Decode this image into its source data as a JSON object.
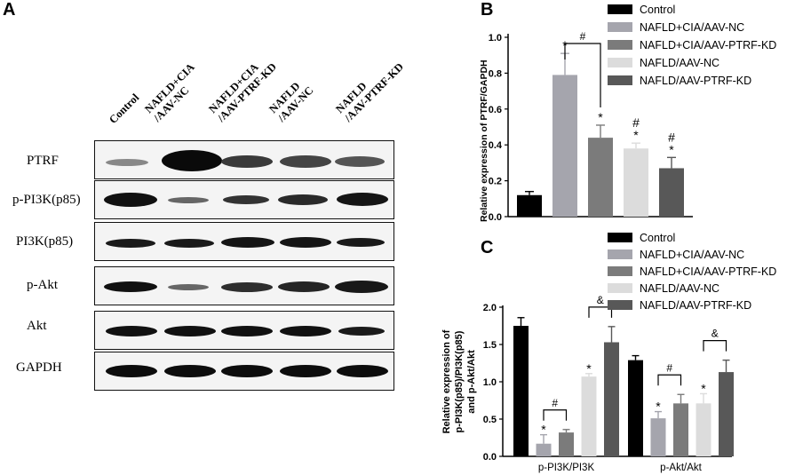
{
  "panels": {
    "a": "A",
    "b": "B",
    "c": "C"
  },
  "western_blot": {
    "lanes": [
      {
        "line1": "Control",
        "line2": ""
      },
      {
        "line1": "NAFLD+CIA",
        "line2": "/AAV-NC"
      },
      {
        "line1": "NAFLD+CIA",
        "line2": "/AAV-PTRF-KD"
      },
      {
        "line1": "NAFLD",
        "line2": "/AAV-NC"
      },
      {
        "line1": "NAFLD",
        "line2": "/AAV-PTRF-KD"
      }
    ],
    "rows": [
      "PTRF",
      "p-PI3K(p85)",
      "PI3K(p85)",
      "p-Akt",
      "Akt",
      "GAPDH"
    ]
  },
  "chart_data": [
    {
      "type": "bar",
      "ylabel": "Relative expression of PTRF/GAPDH",
      "ylim": [
        0,
        1.0
      ],
      "yticks": [
        "0.0",
        "0.2",
        "0.4",
        "0.6",
        "0.8",
        "1.0"
      ],
      "legend": [
        "Control",
        "NAFLD+CIA/AAV-NC",
        "NAFLD+CIA/AAV-PTRF-KD",
        "NAFLD/AAV-NC",
        "NAFLD/AAV-PTRF-KD"
      ],
      "colors": [
        "#000000",
        "#a5a5ad",
        "#7b7b7b",
        "#dcdcdc",
        "#585858"
      ],
      "values": [
        0.12,
        0.79,
        0.44,
        0.38,
        0.27
      ],
      "errors": [
        0.02,
        0.12,
        0.07,
        0.03,
        0.06
      ],
      "annotations": [
        "",
        "*",
        "*",
        "#\n*",
        "#\n*"
      ],
      "bracket_symbol": "#"
    },
    {
      "type": "bar",
      "ylabel_lines": [
        "Relative expression of",
        "p-PI3K(p85)/PI3K(p85)",
        "and p-Akt/Akt"
      ],
      "ylim": [
        0,
        2.0
      ],
      "yticks": [
        "0.0",
        "0.5",
        "1.0",
        "1.5",
        "2.0"
      ],
      "categories": [
        "p-PI3K/PI3K",
        "p-Akt/Akt"
      ],
      "legend": [
        "Control",
        "NAFLD+CIA/AAV-NC",
        "NAFLD+CIA/AAV-PTRF-KD",
        "NAFLD/AAV-NC",
        "NAFLD/AAV-PTRF-KD"
      ],
      "colors": [
        "#000000",
        "#a5a5ad",
        "#7b7b7b",
        "#dcdcdc",
        "#585858"
      ],
      "series_values": [
        [
          1.75,
          0.17,
          0.32,
          1.07,
          1.53
        ],
        [
          1.29,
          0.51,
          0.71,
          0.71,
          1.13
        ]
      ],
      "series_errors": [
        [
          0.11,
          0.12,
          0.04,
          0.04,
          0.21
        ],
        [
          0.06,
          0.09,
          0.12,
          0.13,
          0.16
        ]
      ],
      "annotations": [
        [
          "",
          "*",
          "",
          "*",
          ""
        ],
        [
          "",
          "*",
          "",
          "*",
          ""
        ]
      ],
      "brackets": [
        [
          "#",
          "&"
        ],
        [
          "#",
          "&"
        ]
      ]
    }
  ]
}
